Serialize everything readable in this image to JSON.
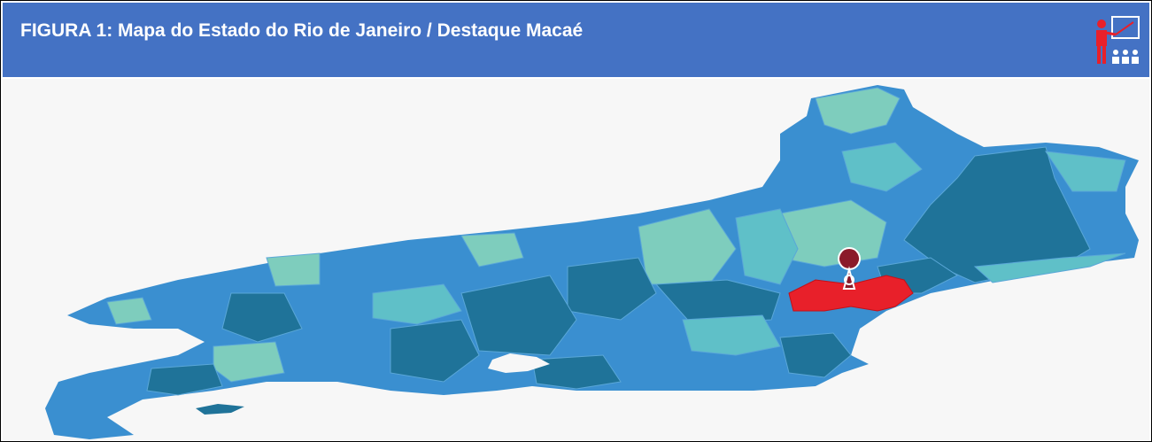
{
  "header": {
    "title": "FIGURA 1: Mapa do Estado do Rio de Janeiro / Destaque Macaé"
  }
}
